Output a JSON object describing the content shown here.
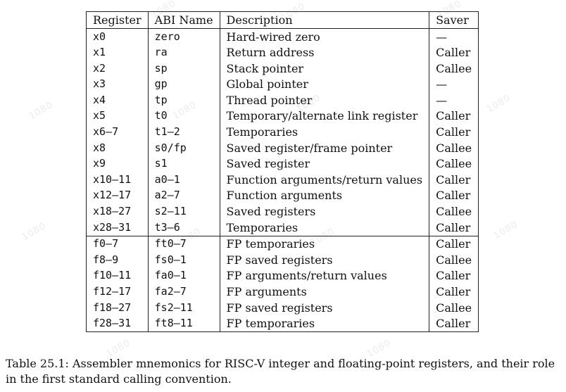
{
  "table": {
    "headers": {
      "register": "Register",
      "abi_name": "ABI Name",
      "description": "Description",
      "saver": "Saver"
    },
    "integer_rows": [
      {
        "register": "x0",
        "abi_name": "zero",
        "description": "Hard-wired zero",
        "saver": "—"
      },
      {
        "register": "x1",
        "abi_name": "ra",
        "description": "Return address",
        "saver": "Caller"
      },
      {
        "register": "x2",
        "abi_name": "sp",
        "description": "Stack pointer",
        "saver": "Callee"
      },
      {
        "register": "x3",
        "abi_name": "gp",
        "description": "Global pointer",
        "saver": "—"
      },
      {
        "register": "x4",
        "abi_name": "tp",
        "description": "Thread pointer",
        "saver": "—"
      },
      {
        "register": "x5",
        "abi_name": "t0",
        "description": "Temporary/alternate link register",
        "saver": "Caller"
      },
      {
        "register": "x6–7",
        "abi_name": "t1–2",
        "description": "Temporaries",
        "saver": "Caller"
      },
      {
        "register": "x8",
        "abi_name": "s0/fp",
        "description": "Saved register/frame pointer",
        "saver": "Callee"
      },
      {
        "register": "x9",
        "abi_name": "s1",
        "description": "Saved register",
        "saver": "Callee"
      },
      {
        "register": "x10–11",
        "abi_name": "a0–1",
        "description": "Function arguments/return values",
        "saver": "Caller"
      },
      {
        "register": "x12–17",
        "abi_name": "a2–7",
        "description": "Function arguments",
        "saver": "Caller"
      },
      {
        "register": "x18–27",
        "abi_name": "s2–11",
        "description": "Saved registers",
        "saver": "Callee"
      },
      {
        "register": "x28–31",
        "abi_name": "t3–6",
        "description": "Temporaries",
        "saver": "Caller"
      }
    ],
    "fp_rows": [
      {
        "register": "f0–7",
        "abi_name": "ft0–7",
        "description": "FP temporaries",
        "saver": "Caller"
      },
      {
        "register": "f8–9",
        "abi_name": "fs0–1",
        "description": "FP saved registers",
        "saver": "Callee"
      },
      {
        "register": "f10–11",
        "abi_name": "fa0–1",
        "description": "FP arguments/return values",
        "saver": "Caller"
      },
      {
        "register": "f12–17",
        "abi_name": "fa2–7",
        "description": "FP arguments",
        "saver": "Caller"
      },
      {
        "register": "f18–27",
        "abi_name": "fs2–11",
        "description": "FP saved registers",
        "saver": "Callee"
      },
      {
        "register": "f28–31",
        "abi_name": "ft8–11",
        "description": "FP temporaries",
        "saver": "Caller"
      }
    ]
  },
  "caption": {
    "line1": "Table 25.1: Assembler mnemonics for RISC-V integer and floating-point registers, and their role",
    "line2": "in the first standard calling convention."
  }
}
